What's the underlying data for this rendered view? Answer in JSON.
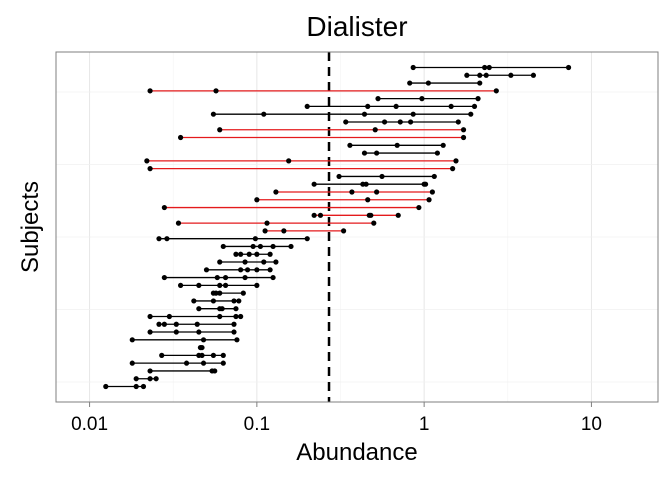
{
  "chart_data": {
    "type": "dot-range",
    "title": "Dialister",
    "xlabel": "Abundance",
    "ylabel": "Subjects",
    "x_scale": "log10",
    "xlim": [
      0.0063,
      25
    ],
    "x_ticks": [
      0.01,
      0.1,
      1,
      10
    ],
    "x_tick_labels": [
      "0.01",
      "0.1",
      "1",
      "10"
    ],
    "grid": true,
    "reference_line": {
      "x": 0.27,
      "style": "dashed"
    },
    "colors": {
      "black_range": "#000000",
      "red_range": "#e41a1c",
      "point": "#000000"
    },
    "subjects": [
      {
        "points": [
          0.86,
          2.3,
          2.45,
          7.3
        ],
        "color": "black"
      },
      {
        "points": [
          1.8,
          2.15,
          2.35,
          3.3,
          4.5
        ],
        "color": "black"
      },
      {
        "points": [
          0.82,
          1.06,
          2.15
        ],
        "color": "black"
      },
      {
        "points": [
          0.023,
          0.057,
          2.7
        ],
        "color": "red"
      },
      {
        "points": [
          0.53,
          0.97,
          2.1
        ],
        "color": "black"
      },
      {
        "points": [
          0.2,
          0.46,
          0.68,
          1.45,
          2.0
        ],
        "color": "black"
      },
      {
        "points": [
          0.055,
          0.11,
          0.44,
          0.86,
          1.9
        ],
        "color": "black"
      },
      {
        "points": [
          0.34,
          0.58,
          0.72,
          0.83,
          1.6
        ],
        "color": "black"
      },
      {
        "points": [
          0.06,
          0.51,
          1.72
        ],
        "color": "red"
      },
      {
        "points": [
          0.035,
          1.72
        ],
        "color": "red"
      },
      {
        "points": [
          0.36,
          0.69,
          1.3
        ],
        "color": "black"
      },
      {
        "points": [
          0.44,
          0.52,
          1.2
        ],
        "color": "black"
      },
      {
        "points": [
          0.022,
          0.155,
          1.55
        ],
        "color": "red"
      },
      {
        "points": [
          0.023,
          1.48
        ],
        "color": "red"
      },
      {
        "points": [
          0.31,
          0.56,
          1.15
        ],
        "color": "black"
      },
      {
        "points": [
          0.22,
          0.43,
          0.45,
          1.0,
          1.02
        ],
        "color": "black"
      },
      {
        "points": [
          0.13,
          0.37,
          0.52,
          1.12
        ],
        "color": "red"
      },
      {
        "points": [
          0.1,
          0.46,
          1.07
        ],
        "color": "red"
      },
      {
        "points": [
          0.028,
          0.93
        ],
        "color": "red"
      },
      {
        "points": [
          0.22,
          0.24,
          0.47,
          0.48,
          0.7
        ],
        "color": "red"
      },
      {
        "points": [
          0.034,
          0.115,
          0.5
        ],
        "color": "red"
      },
      {
        "points": [
          0.112,
          0.145,
          0.33
        ],
        "color": "red"
      },
      {
        "points": [
          0.026,
          0.029,
          0.098,
          0.2
        ],
        "color": "black"
      },
      {
        "points": [
          0.063,
          0.095,
          0.105,
          0.125,
          0.16
        ],
        "color": "black"
      },
      {
        "points": [
          0.075,
          0.08,
          0.09,
          0.1,
          0.12
        ],
        "color": "black"
      },
      {
        "points": [
          0.06,
          0.085,
          0.11,
          0.13
        ],
        "color": "black"
      },
      {
        "points": [
          0.05,
          0.08,
          0.088,
          0.1,
          0.12
        ],
        "color": "black"
      },
      {
        "points": [
          0.028,
          0.058,
          0.065,
          0.085,
          0.125
        ],
        "color": "black"
      },
      {
        "points": [
          0.035,
          0.045,
          0.06,
          0.065,
          0.1
        ],
        "color": "black"
      },
      {
        "points": [
          0.055,
          0.057,
          0.06,
          0.083
        ],
        "color": "black"
      },
      {
        "points": [
          0.042,
          0.055,
          0.073,
          0.078
        ],
        "color": "black"
      },
      {
        "points": [
          0.045,
          0.06,
          0.062,
          0.075
        ],
        "color": "black"
      },
      {
        "points": [
          0.023,
          0.03,
          0.06,
          0.075,
          0.08
        ],
        "color": "black"
      },
      {
        "points": [
          0.026,
          0.028,
          0.033,
          0.044,
          0.073
        ],
        "color": "black"
      },
      {
        "points": [
          0.023,
          0.033,
          0.045,
          0.073
        ],
        "color": "black"
      },
      {
        "points": [
          0.018,
          0.048,
          0.076
        ],
        "color": "black"
      },
      {
        "points": [
          0.046,
          0.047
        ],
        "color": "black"
      },
      {
        "points": [
          0.027,
          0.045,
          0.047,
          0.055,
          0.063
        ],
        "color": "black"
      },
      {
        "points": [
          0.018,
          0.038,
          0.048,
          0.063
        ],
        "color": "black"
      },
      {
        "points": [
          0.023,
          0.054,
          0.056
        ],
        "color": "black"
      },
      {
        "points": [
          0.019,
          0.023,
          0.025
        ],
        "color": "black"
      },
      {
        "points": [
          0.0125,
          0.019,
          0.021
        ],
        "color": "black"
      }
    ]
  }
}
